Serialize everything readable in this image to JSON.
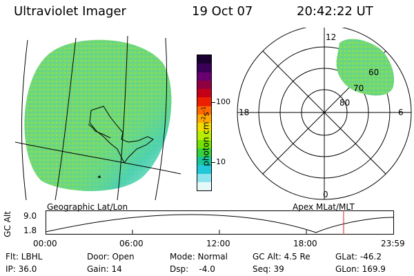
{
  "header": {
    "title": "Ultraviolet Imager",
    "date": "19 Oct 07",
    "time": "20:42:22 UT"
  },
  "colorbar": {
    "unit_label": "photon cm",
    "unit_sup1": "-2",
    "unit_mid": "s",
    "unit_sup2": "-1",
    "tick_labels": [
      "100",
      "10"
    ],
    "colors": [
      "#1a0030",
      "#3a0058",
      "#6a0070",
      "#900040",
      "#c40018",
      "#ec2000",
      "#ff6a00",
      "#ffa800",
      "#f2dc00",
      "#b8ec00",
      "#74e200",
      "#36d23a",
      "#18c69a",
      "#22c8d8",
      "#8ee4ee",
      "#e6f8fa"
    ]
  },
  "geographic_map": {
    "label": "Geographic Lat/Lon"
  },
  "polar_plot": {
    "label": "Apex MLat/MLT",
    "mlt_labels": [
      "12",
      "18",
      "6",
      "0"
    ],
    "mlat_labels": [
      "60",
      "70",
      "80"
    ]
  },
  "altitude_plot": {
    "ylabel": "GC Alt",
    "y_ticks": [
      "9.0",
      "1.8"
    ],
    "x_ticks": [
      "00:00",
      "06:00",
      "12:00",
      "18:00",
      "23:59"
    ]
  },
  "status": {
    "flt": "Flt: LBHL",
    "ip": "IP: 36.0",
    "door": "Door: Open",
    "gain": "Gain: 14",
    "mode": "Mode: Normal",
    "dsp": "Dsp:    -4.0",
    "gcalt": "GC Alt: 4.5 Re",
    "seq": "Seq: 39",
    "glat": "GLat: -46.2",
    "glon": "GLon: 169.9"
  }
}
